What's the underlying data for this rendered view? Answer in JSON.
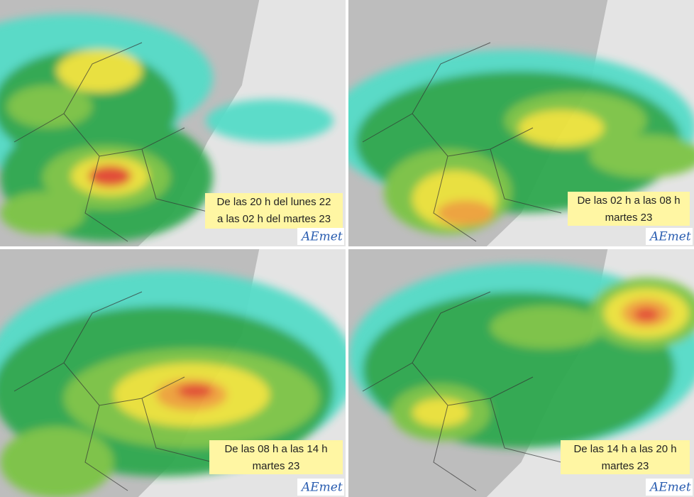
{
  "logo": "AEmet",
  "panels": [
    {
      "lines": [
        "De las 20 h del lunes 22",
        "a las 02 h del martes 23"
      ]
    },
    {
      "lines": [
        "De las 02 h a las 08 h",
        "martes 23"
      ]
    },
    {
      "lines": [
        "De las 08 h a las 14 h",
        "martes 23"
      ]
    },
    {
      "lines": [
        "De las 14 h a las 20 h",
        "martes 23"
      ]
    }
  ]
}
